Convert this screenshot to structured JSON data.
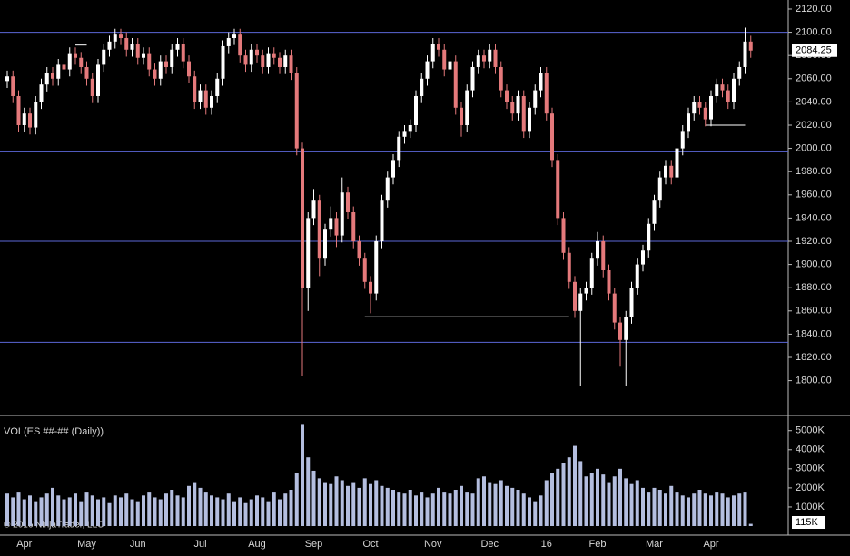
{
  "chart_data": [
    {
      "type": "candlestick",
      "categories": [
        null,
        null,
        null,
        "Apr",
        null,
        null,
        null,
        null,
        null,
        null,
        null,
        null,
        null,
        null,
        "May",
        null,
        null,
        null,
        null,
        null,
        null,
        null,
        null,
        "Jun",
        null,
        null,
        null,
        null,
        null,
        null,
        null,
        null,
        null,
        null,
        "Jul",
        null,
        null,
        null,
        null,
        null,
        null,
        null,
        null,
        null,
        "Aug",
        null,
        null,
        null,
        null,
        null,
        null,
        null,
        null,
        null,
        "Sep",
        null,
        null,
        null,
        null,
        null,
        null,
        null,
        null,
        null,
        "Oct",
        null,
        null,
        null,
        null,
        null,
        null,
        null,
        null,
        null,
        null,
        "Nov",
        null,
        null,
        null,
        null,
        null,
        null,
        null,
        null,
        null,
        "Dec",
        null,
        null,
        null,
        null,
        null,
        null,
        null,
        null,
        null,
        "16",
        null,
        null,
        null,
        null,
        null,
        null,
        null,
        null,
        "Feb",
        null,
        null,
        null,
        null,
        null,
        null,
        null,
        null,
        null,
        "Mar",
        null,
        null,
        null,
        null,
        null,
        null,
        null,
        null,
        null,
        "Apr",
        null,
        null,
        null,
        null,
        null,
        null,
        null
      ],
      "open": [
        2058,
        2062,
        2045,
        2020,
        2030,
        2018,
        2040,
        2055,
        2065,
        2060,
        2072,
        2068,
        2082,
        2078,
        2070,
        2060,
        2045,
        2072,
        2085,
        2092,
        2098,
        2095,
        2085,
        2090,
        2078,
        2082,
        2068,
        2060,
        2075,
        2070,
        2085,
        2090,
        2075,
        2062,
        2040,
        2050,
        2035,
        2045,
        2060,
        2088,
        2095,
        2098,
        2080,
        2072,
        2085,
        2080,
        2070,
        2082,
        2078,
        2070,
        2080,
        2065,
        2000,
        1880,
        1940,
        1955,
        1905,
        1930,
        1940,
        1925,
        1962,
        1945,
        1920,
        1905,
        1885,
        1875,
        1920,
        1955,
        1975,
        1990,
        2010,
        2015,
        2020,
        2045,
        2060,
        2075,
        2090,
        2085,
        2068,
        2075,
        2035,
        2020,
        2050,
        2070,
        2080,
        2075,
        2085,
        2070,
        2050,
        2040,
        2030,
        2045,
        2015,
        2035,
        2050,
        2065,
        2030,
        1990,
        1940,
        1910,
        1885,
        1860,
        1875,
        1880,
        1905,
        1920,
        1895,
        1875,
        1850,
        1835,
        1855,
        1880,
        1900,
        1912,
        1935,
        1955,
        1975,
        1985,
        1975,
        2000,
        2015,
        2030,
        2040,
        2035,
        2025,
        2045,
        2055,
        2050,
        2040,
        2060,
        2070,
        2092
      ],
      "high": [
        2067,
        2067,
        2050,
        2035,
        2035,
        2045,
        2060,
        2070,
        2070,
        2077,
        2077,
        2087,
        2087,
        2083,
        2075,
        2065,
        2077,
        2090,
        2097,
        2103,
        2103,
        2100,
        2095,
        2095,
        2087,
        2087,
        2073,
        2080,
        2080,
        2090,
        2095,
        2095,
        2080,
        2067,
        2055,
        2055,
        2050,
        2065,
        2093,
        2100,
        2103,
        2103,
        2085,
        2090,
        2090,
        2085,
        2087,
        2087,
        2083,
        2085,
        2085,
        2070,
        2005,
        1945,
        1965,
        1960,
        1935,
        1950,
        1945,
        1975,
        1967,
        1950,
        1925,
        1910,
        1890,
        1925,
        1960,
        1980,
        1995,
        2015,
        2020,
        2025,
        2050,
        2065,
        2080,
        2095,
        2095,
        2090,
        2080,
        2080,
        2040,
        2055,
        2075,
        2085,
        2085,
        2090,
        2090,
        2075,
        2055,
        2045,
        2050,
        2050,
        2040,
        2055,
        2070,
        2070,
        2035,
        1995,
        1945,
        1915,
        1890,
        1880,
        1885,
        1910,
        1928,
        1925,
        1900,
        1880,
        1855,
        1860,
        1885,
        1905,
        1917,
        1940,
        1960,
        1980,
        1990,
        1990,
        2005,
        2020,
        2035,
        2045,
        2045,
        2040,
        2050,
        2060,
        2060,
        2055,
        2065,
        2075,
        2104,
        2097
      ],
      "low": [
        2052,
        2039,
        2014,
        2014,
        2012,
        2012,
        2034,
        2049,
        2054,
        2054,
        2062,
        2062,
        2072,
        2064,
        2054,
        2039,
        2039,
        2066,
        2079,
        2086,
        2089,
        2079,
        2079,
        2072,
        2072,
        2062,
        2054,
        2054,
        2064,
        2064,
        2079,
        2069,
        2056,
        2034,
        2034,
        2029,
        2029,
        2039,
        2054,
        2082,
        2089,
        2074,
        2066,
        2066,
        2074,
        2064,
        2064,
        2072,
        2064,
        2064,
        2059,
        1994,
        1804,
        1860,
        1934,
        1890,
        1899,
        1924,
        1915,
        1919,
        1939,
        1914,
        1899,
        1879,
        1858,
        1869,
        1914,
        1949,
        1969,
        1984,
        2004,
        2009,
        2014,
        2039,
        2054,
        2069,
        2079,
        2062,
        2062,
        2029,
        2010,
        2014,
        2044,
        2064,
        2069,
        2069,
        2064,
        2044,
        2034,
        2024,
        2024,
        2009,
        2009,
        2029,
        2044,
        2024,
        1984,
        1934,
        1904,
        1879,
        1854,
        1795,
        1869,
        1874,
        1899,
        1889,
        1869,
        1844,
        1812,
        1795,
        1849,
        1874,
        1894,
        1906,
        1929,
        1949,
        1969,
        1969,
        1969,
        1994,
        2009,
        2024,
        2029,
        2019,
        2019,
        2039,
        2044,
        2034,
        2034,
        2054,
        2064,
        2078
      ],
      "close": [
        2062,
        2045,
        2020,
        2030,
        2018,
        2040,
        2055,
        2065,
        2060,
        2072,
        2068,
        2082,
        2078,
        2070,
        2060,
        2045,
        2072,
        2085,
        2092,
        2098,
        2095,
        2085,
        2090,
        2078,
        2082,
        2068,
        2060,
        2075,
        2070,
        2085,
        2090,
        2075,
        2062,
        2040,
        2050,
        2035,
        2045,
        2060,
        2088,
        2095,
        2098,
        2080,
        2072,
        2085,
        2080,
        2070,
        2082,
        2078,
        2070,
        2080,
        2065,
        2000,
        1880,
        1940,
        1955,
        1905,
        1930,
        1940,
        1925,
        1962,
        1945,
        1920,
        1905,
        1885,
        1875,
        1920,
        1955,
        1975,
        1990,
        2010,
        2015,
        2020,
        2045,
        2060,
        2075,
        2090,
        2085,
        2068,
        2075,
        2035,
        2020,
        2050,
        2070,
        2080,
        2075,
        2085,
        2070,
        2050,
        2040,
        2030,
        2045,
        2015,
        2035,
        2050,
        2065,
        2030,
        1990,
        1940,
        1910,
        1885,
        1860,
        1875,
        1880,
        1905,
        1920,
        1895,
        1875,
        1850,
        1835,
        1855,
        1880,
        1900,
        1912,
        1935,
        1955,
        1975,
        1985,
        1975,
        2000,
        2015,
        2030,
        2040,
        2035,
        2025,
        2045,
        2055,
        2050,
        2040,
        2060,
        2070,
        2092,
        2084.25
      ],
      "up_color": "#ffffff",
      "down_color": "#e4797b",
      "ylim": [
        1770,
        2127.8
      ],
      "yticks": [
        {
          "value": 2120,
          "label": "2120.00"
        },
        {
          "value": 2100,
          "label": "2100.00"
        },
        {
          "value": 2080,
          "label": "2080.00"
        },
        {
          "value": 2060,
          "label": "2060.00"
        },
        {
          "value": 2040,
          "label": "2040.00"
        },
        {
          "value": 2020,
          "label": "2020.00"
        },
        {
          "value": 2000,
          "label": "2000.00"
        },
        {
          "value": 1980,
          "label": "1980.00"
        },
        {
          "value": 1960,
          "label": "1960.00"
        },
        {
          "value": 1940,
          "label": "1940.00"
        },
        {
          "value": 1920,
          "label": "1920.00"
        },
        {
          "value": 1900,
          "label": "1900.00"
        },
        {
          "value": 1880,
          "label": "1880.00"
        },
        {
          "value": 1860,
          "label": "1860.00"
        },
        {
          "value": 1840,
          "label": "1840.00"
        },
        {
          "value": 1820,
          "label": "1820.00"
        },
        {
          "value": 1800,
          "label": "1800.00"
        }
      ],
      "hlines": {
        "color": "#5b67d8",
        "values": [
          2100,
          1997,
          1920,
          1833,
          1804
        ]
      },
      "levels": {
        "color": "#ffffff",
        "items": [
          {
            "value": 1855,
            "start": 63,
            "end": 99
          },
          {
            "value": 2020,
            "start": 123,
            "end": 130
          },
          {
            "value": 2089,
            "start": 12,
            "end": 14
          }
        ]
      }
    },
    {
      "type": "bar",
      "title": "VOL(ES ##-## (Daily))",
      "color": "#b4bedf",
      "values": [
        1700,
        1500,
        1800,
        1400,
        1600,
        1300,
        1500,
        1700,
        2000,
        1600,
        1400,
        1500,
        1700,
        1300,
        1800,
        1600,
        1400,
        1500,
        1200,
        1600,
        1500,
        1700,
        1400,
        1300,
        1600,
        1800,
        1500,
        1400,
        1700,
        1900,
        1600,
        1500,
        2100,
        2300,
        2000,
        1800,
        1600,
        1500,
        1400,
        1700,
        1300,
        1500,
        1200,
        1400,
        1600,
        1500,
        1300,
        1800,
        1400,
        1700,
        1900,
        2800,
        5300,
        3600,
        2900,
        2500,
        2300,
        2200,
        2600,
        2400,
        2100,
        2300,
        2000,
        2500,
        2200,
        2400,
        2100,
        2000,
        1900,
        1800,
        1700,
        1900,
        1600,
        1800,
        1500,
        1700,
        2000,
        1800,
        1700,
        1900,
        2100,
        1800,
        1700,
        2500,
        2600,
        2300,
        2200,
        2400,
        2100,
        2000,
        1900,
        1700,
        1500,
        1300,
        1600,
        2400,
        2800,
        3000,
        3300,
        3600,
        4200,
        3400,
        2600,
        2800,
        3000,
        2700,
        2300,
        2600,
        3000,
        2500,
        2200,
        2400,
        2000,
        1800,
        2000,
        1900,
        1700,
        2100,
        1800,
        1600,
        1500,
        1700,
        1900,
        1700,
        1600,
        1800,
        1700,
        1500,
        1600,
        1700,
        1800,
        115
      ],
      "last_label": "115K",
      "ylim": [
        0,
        5700
      ],
      "yticks": [
        {
          "value": 5000,
          "label": "5000K"
        },
        {
          "value": 4000,
          "label": "4000K"
        },
        {
          "value": 3000,
          "label": "3000K"
        },
        {
          "value": 2000,
          "label": "2000K"
        },
        {
          "value": 1000,
          "label": "1000K"
        }
      ]
    }
  ],
  "footer": "© 2016 NinjaTrader, LLC"
}
